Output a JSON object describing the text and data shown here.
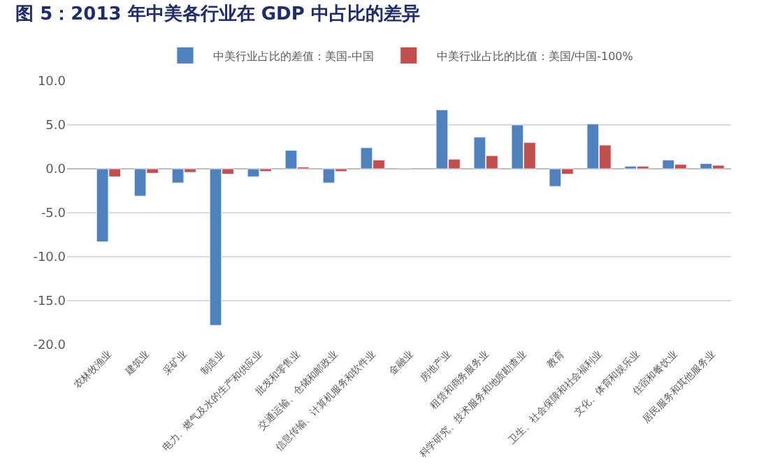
{
  "chart_data": {
    "type": "bar",
    "title": "图 5：2013 年中美各行业在 GDP 中占比的差异",
    "categories": [
      "农林牧渔业",
      "建筑业",
      "采矿业",
      "制造业",
      "电力、燃气及水的生产和供应业",
      "批发和零售业",
      "交通运输、仓储和邮政业",
      "信息传输、计算机服务和软件业",
      "金融业",
      "房地产业",
      "租赁和商务服务业",
      "科学研究、技术服务和地质勘查业",
      "教育",
      "卫生、社会保障和社会福利业",
      "文化、体育和娱乐业",
      "住宿和餐饮业",
      "居民服务和其他服务业"
    ],
    "series": [
      {
        "name": "中美行业占比的差值：美国-中国",
        "color": "#4f81bd",
        "values": [
          -8.3,
          -3.1,
          -1.6,
          -17.8,
          -0.9,
          2.1,
          -1.6,
          2.4,
          -0.1,
          6.7,
          3.6,
          5.0,
          -2.0,
          5.1,
          0.3,
          1.0,
          0.6
        ]
      },
      {
        "name": "中美行业占比的比值：美国/中国-100%",
        "color": "#c0504d",
        "values": [
          -0.9,
          -0.5,
          -0.4,
          -0.6,
          -0.3,
          0.2,
          -0.3,
          1.0,
          null,
          1.1,
          1.5,
          3.0,
          -0.6,
          2.7,
          0.3,
          0.5,
          0.4
        ]
      }
    ],
    "ylim": [
      -20,
      10
    ],
    "yticks": [
      {
        "value": -20,
        "label": "-20.0"
      },
      {
        "value": -15,
        "label": "-15.0"
      },
      {
        "value": -10,
        "label": "-10.0"
      },
      {
        "value": -5,
        "label": "-5.0"
      },
      {
        "value": 0,
        "label": "0.0"
      },
      {
        "value": 5,
        "label": "5.0"
      },
      {
        "value": 10,
        "label": "10.0"
      }
    ],
    "grid": "y",
    "legend": "top"
  }
}
